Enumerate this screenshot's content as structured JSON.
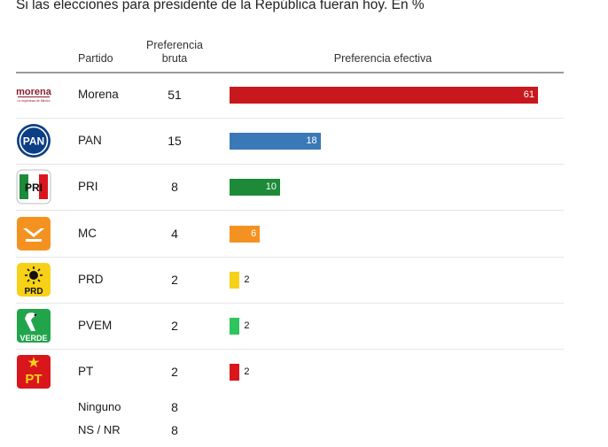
{
  "title": "Si las elecciones para presidente de la República fueran hoy. En %",
  "header": {
    "partido": "Partido",
    "bruta": "Preferencia bruta",
    "efectiva": "Preferencia efectiva"
  },
  "chart_data": {
    "type": "bar",
    "orientation": "horizontal",
    "title": "Si las elecciones para presidente de la República fueran hoy. En %",
    "categories": [
      "Morena",
      "PAN",
      "PRI",
      "MC",
      "PRD",
      "PVEM",
      "PT",
      "Ninguno",
      "NS / NR"
    ],
    "preferencia_bruta": [
      51,
      15,
      8,
      4,
      2,
      2,
      2,
      8,
      8
    ],
    "preferencia_efectiva": [
      61,
      18,
      10,
      6,
      2,
      2,
      2,
      null,
      null
    ],
    "bar_colors": [
      "#c8171d",
      "#3a78b8",
      "#1d8a3a",
      "#f39220",
      "#f4d21a",
      "#2fc45c",
      "#d9161c"
    ],
    "xlim": [
      0,
      61
    ]
  },
  "logos": {
    "morena": {
      "text": "morena",
      "sub": "La esperanza de México",
      "color": "#8b1d2e"
    },
    "pan": {
      "text": "PAN",
      "color": "#0b3e84"
    },
    "pri": {
      "text": "PRI"
    },
    "mc": {
      "color": "#f39220"
    },
    "prd": {
      "text": "PRD",
      "color": "#f7d117"
    },
    "pvem": {
      "text": "VERDE",
      "color": "#21a54a"
    },
    "pt": {
      "text": "PT",
      "color": "#d9161c"
    }
  }
}
